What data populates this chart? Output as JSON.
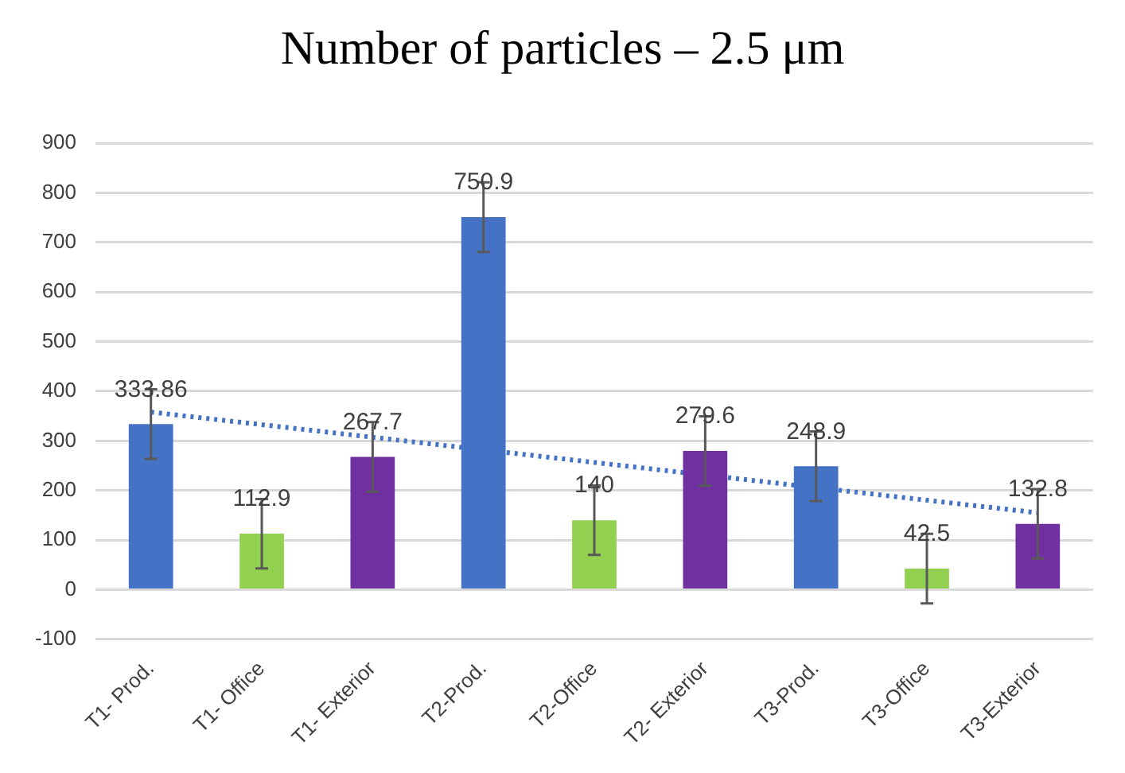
{
  "chart_data": {
    "type": "bar",
    "title": "Number of particles – 2.5 μm",
    "categories": [
      "T1- Prod.",
      "T1- Office",
      "T1- Exterior",
      "T2-Prod.",
      "T2-Office",
      "T2- Exterior",
      "T3-Prod.",
      "T3-Office",
      "T3-Exterior"
    ],
    "series": [
      {
        "colors": [
          "#4472c4",
          "#92d050",
          "#7030a0",
          "#4472c4",
          "#92d050",
          "#7030a0",
          "#4472c4",
          "#92d050",
          "#7030a0"
        ],
        "values": [
          333.86,
          112.9,
          267.7,
          750.9,
          140,
          279.6,
          248.9,
          42.5,
          132.8
        ],
        "errors": [
          70,
          70,
          70,
          70,
          70,
          70,
          70,
          70,
          70
        ],
        "data_labels": true
      },
      {
        "type": "line",
        "x": [
          "T1- Prod.",
          "T3-Exterior"
        ],
        "values": [
          358,
          155
        ],
        "color": "#4472c4",
        "line_style": "dotted",
        "marker": "none"
      }
    ],
    "ylim": [
      -100,
      900
    ],
    "yticks": [
      -100,
      0,
      100,
      200,
      300,
      400,
      500,
      600,
      700,
      800,
      900
    ],
    "grid": "y",
    "legend": false
  }
}
